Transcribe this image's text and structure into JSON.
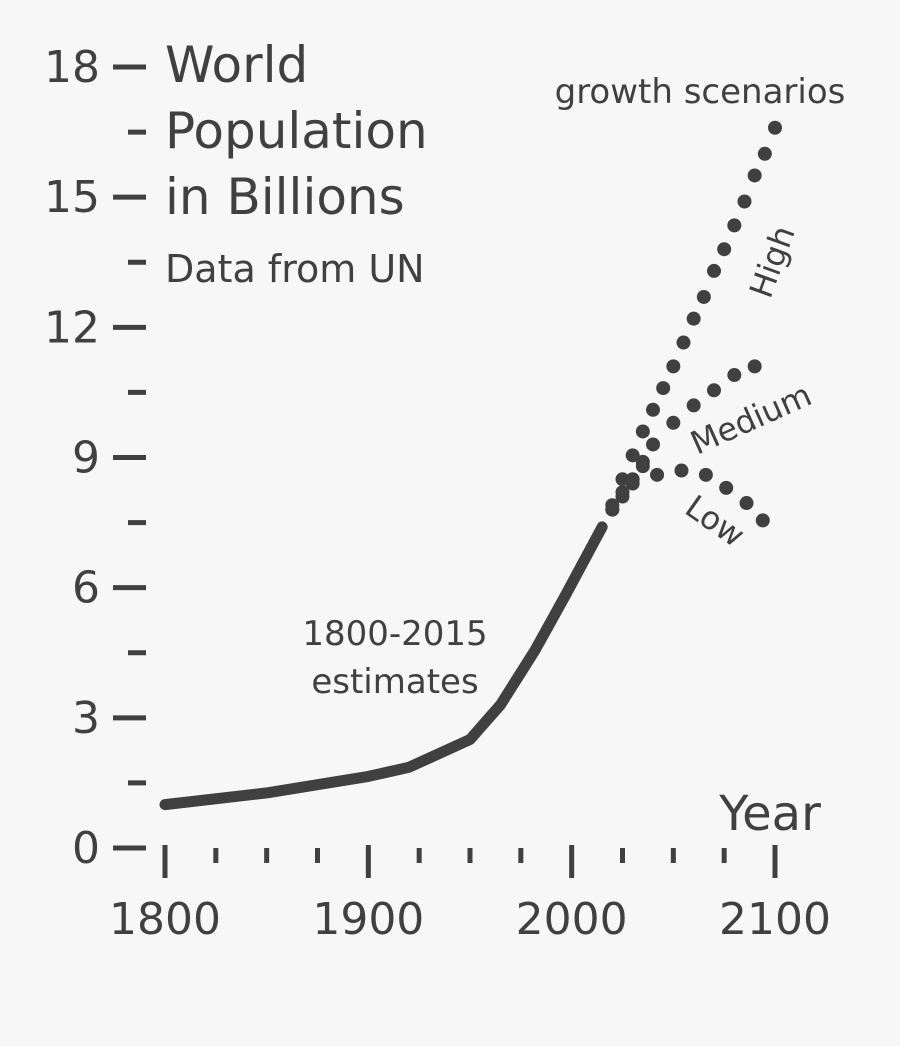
{
  "chart_data": {
    "type": "line",
    "title_lines": [
      "World",
      "Population",
      "in Billions"
    ],
    "subtitle": "Data from UN",
    "xlabel": "Year",
    "ylabel": "",
    "xlim": [
      1800,
      2100
    ],
    "ylim": [
      0,
      18
    ],
    "x_ticks": [
      "1800",
      "1900",
      "2000",
      "2100"
    ],
    "y_ticks": [
      "0",
      "3",
      "6",
      "9",
      "12",
      "15",
      "18"
    ],
    "grid": false,
    "colors": {
      "line": "#404040",
      "background": "#f7f7f7"
    },
    "annotations": {
      "estimates_line1": "1800-2015",
      "estimates_line2": "estimates",
      "scenarios": "growth scenarios"
    },
    "series": [
      {
        "name": "1800-2015 estimates",
        "style": "solid",
        "x": [
          1800,
          1850,
          1900,
          1920,
          1950,
          1965,
          1982,
          1997,
          2015
        ],
        "y": [
          1.0,
          1.27,
          1.65,
          1.86,
          2.5,
          3.3,
          4.56,
          5.83,
          7.4
        ]
      },
      {
        "name": "High",
        "style": "dotted",
        "x": [
          2020,
          2025,
          2030,
          2035,
          2040,
          2045,
          2050,
          2055,
          2060,
          2065,
          2070,
          2075,
          2080,
          2085,
          2090,
          2095,
          2100
        ],
        "y": [
          7.9,
          8.5,
          9.05,
          9.6,
          10.1,
          10.6,
          11.1,
          11.65,
          12.2,
          12.7,
          13.3,
          13.8,
          14.35,
          14.9,
          15.5,
          16.0,
          16.6
        ]
      },
      {
        "name": "Medium",
        "style": "dotted",
        "x": [
          2020,
          2025,
          2030,
          2035,
          2040,
          2050,
          2060,
          2070,
          2080,
          2090
        ],
        "y": [
          7.8,
          8.2,
          8.5,
          8.9,
          9.3,
          9.8,
          10.2,
          10.55,
          10.9,
          11.1
        ]
      },
      {
        "name": "Low",
        "style": "dotted",
        "x": [
          2020,
          2025,
          2030,
          2035,
          2042,
          2054,
          2066,
          2076,
          2086,
          2094
        ],
        "y": [
          7.8,
          8.1,
          8.4,
          8.8,
          8.6,
          8.7,
          8.6,
          8.3,
          7.95,
          7.55
        ]
      }
    ]
  }
}
